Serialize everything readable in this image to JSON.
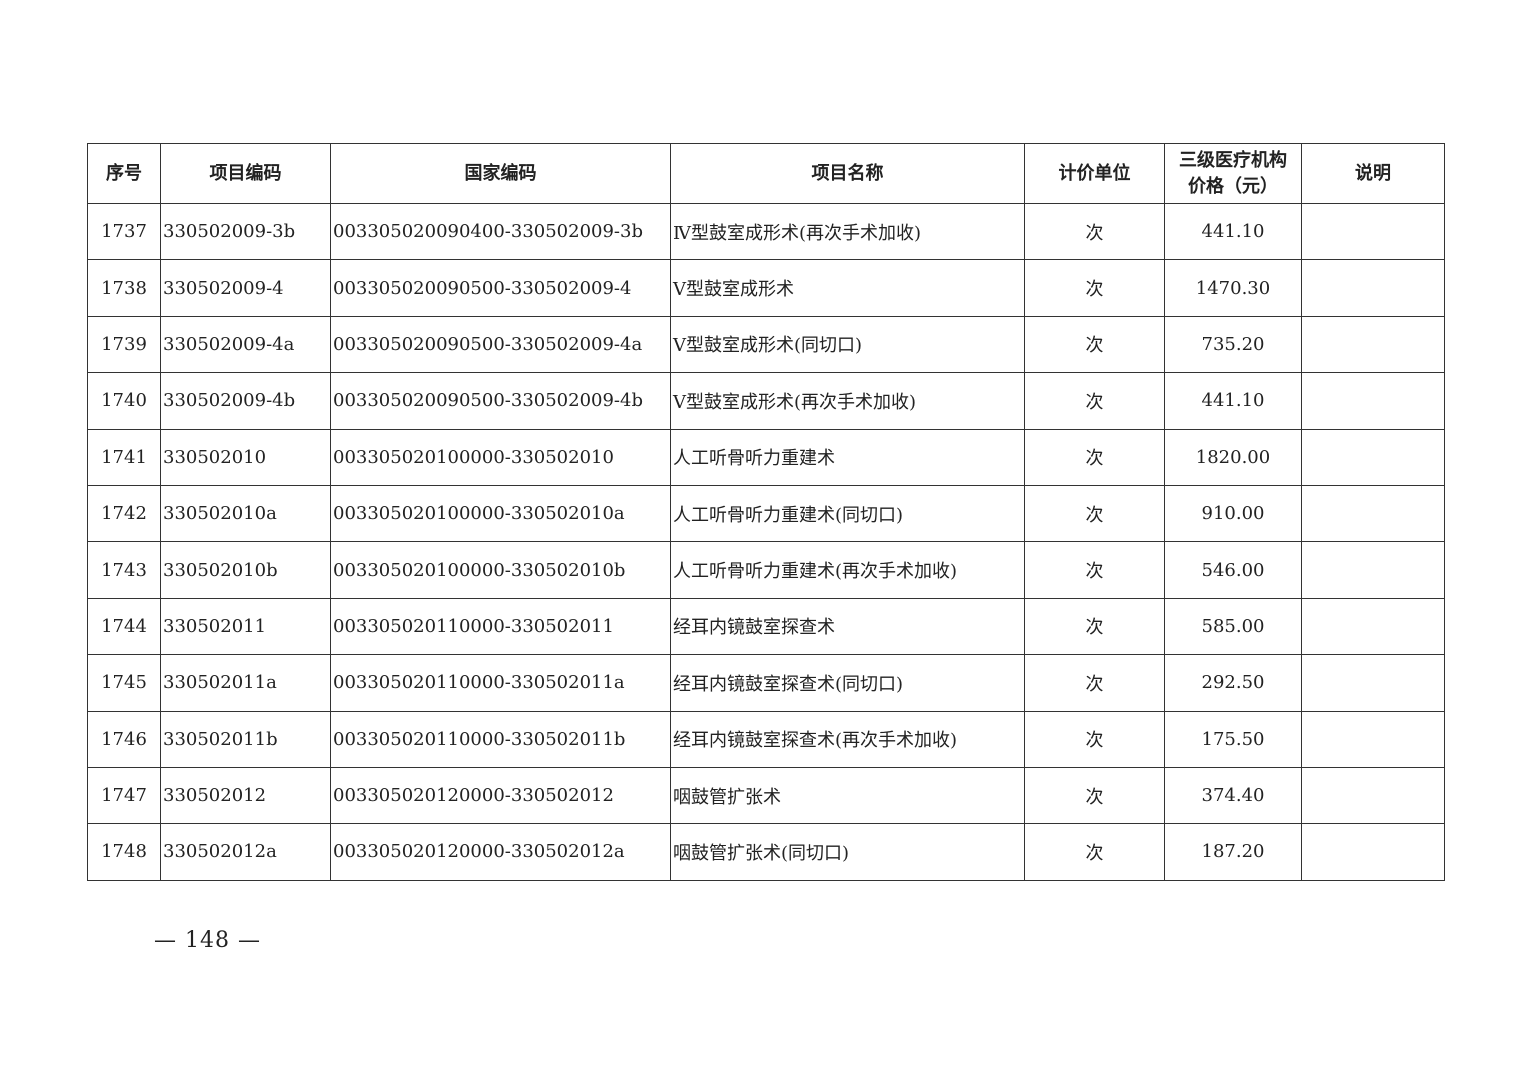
{
  "table": {
    "headers": [
      "序号",
      "项目编码",
      "国家编码",
      "项目名称",
      "计价单位",
      "三级医疗机构价格（元）",
      "说明"
    ],
    "header_price_line1": "三级医疗机构",
    "header_price_line2": "价格（元）",
    "rows": [
      [
        "1737",
        "330502009-3b",
        "003305020090400-330502009-3b",
        "Ⅳ型鼓室成形术(再次手术加收)",
        "次",
        "441.10",
        ""
      ],
      [
        "1738",
        "330502009-4",
        "003305020090500-330502009-4",
        "Ⅴ型鼓室成形术",
        "次",
        "1470.30",
        ""
      ],
      [
        "1739",
        "330502009-4a",
        "003305020090500-330502009-4a",
        "Ⅴ型鼓室成形术(同切口)",
        "次",
        "735.20",
        ""
      ],
      [
        "1740",
        "330502009-4b",
        "003305020090500-330502009-4b",
        "Ⅴ型鼓室成形术(再次手术加收)",
        "次",
        "441.10",
        ""
      ],
      [
        "1741",
        "330502010",
        "003305020100000-330502010",
        "人工听骨听力重建术",
        "次",
        "1820.00",
        ""
      ],
      [
        "1742",
        "330502010a",
        "003305020100000-330502010a",
        "人工听骨听力重建术(同切口)",
        "次",
        "910.00",
        ""
      ],
      [
        "1743",
        "330502010b",
        "003305020100000-330502010b",
        "人工听骨听力重建术(再次手术加收)",
        "次",
        "546.00",
        ""
      ],
      [
        "1744",
        "330502011",
        "003305020110000-330502011",
        "经耳内镜鼓室探查术",
        "次",
        "585.00",
        ""
      ],
      [
        "1745",
        "330502011a",
        "003305020110000-330502011a",
        "经耳内镜鼓室探查术(同切口)",
        "次",
        "292.50",
        ""
      ],
      [
        "1746",
        "330502011b",
        "003305020110000-330502011b",
        "经耳内镜鼓室探查术(再次手术加收)",
        "次",
        "175.50",
        ""
      ],
      [
        "1747",
        "330502012",
        "003305020120000-330502012",
        "咽鼓管扩张术",
        "次",
        "374.40",
        ""
      ],
      [
        "1748",
        "330502012a",
        "003305020120000-330502012a",
        "咽鼓管扩张术(同切口)",
        "次",
        "187.20",
        ""
      ]
    ]
  },
  "page_number": "— 148 —"
}
